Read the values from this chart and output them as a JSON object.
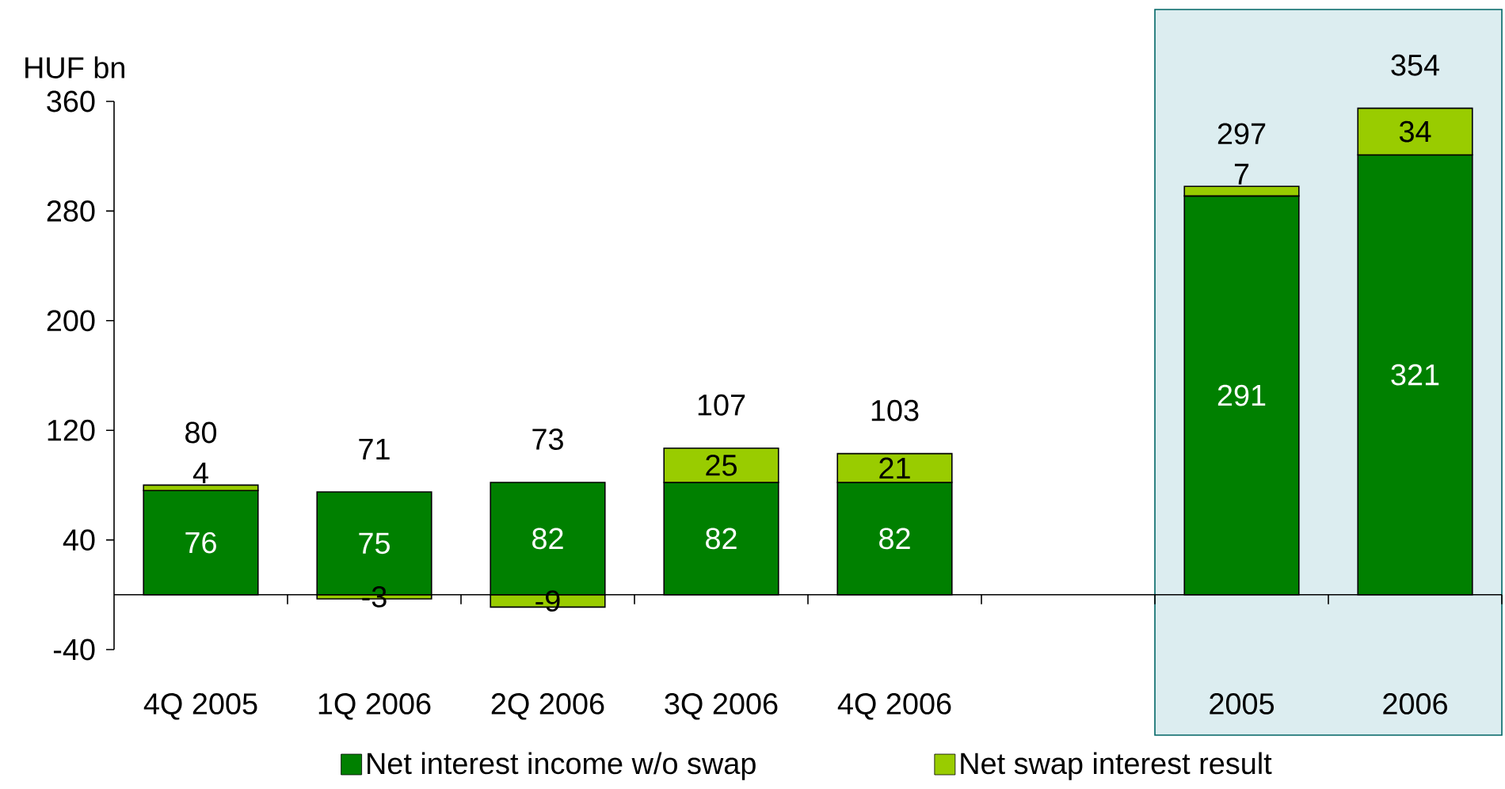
{
  "chart_data": {
    "type": "bar",
    "ylabel": "HUF bn",
    "categories": [
      "4Q 2005",
      "1Q 2006",
      "2Q 2006",
      "3Q 2006",
      "4Q 2006",
      null,
      "2005",
      "2006"
    ],
    "series": [
      {
        "name": "Net interest income w/o swap",
        "color": "#008000",
        "values": [
          76,
          75,
          82,
          82,
          82,
          null,
          291,
          321
        ]
      },
      {
        "name": "Net swap interest result",
        "color": "#99cc00",
        "values": [
          4,
          -3,
          -9,
          25,
          21,
          null,
          7,
          34
        ]
      }
    ],
    "stacked": true,
    "data_labels": true,
    "totals": [
      "80",
      "71",
      "73",
      "107",
      "103",
      null,
      "297",
      "354"
    ],
    "ylim": [
      -40,
      360
    ],
    "yticks": [
      -40,
      40,
      120,
      200,
      280,
      360
    ],
    "legend": "bottom",
    "grid": false,
    "bands": [
      {
        "axis": "x",
        "from": "2005",
        "to": "2006",
        "color": "#dcedf0"
      }
    ]
  }
}
